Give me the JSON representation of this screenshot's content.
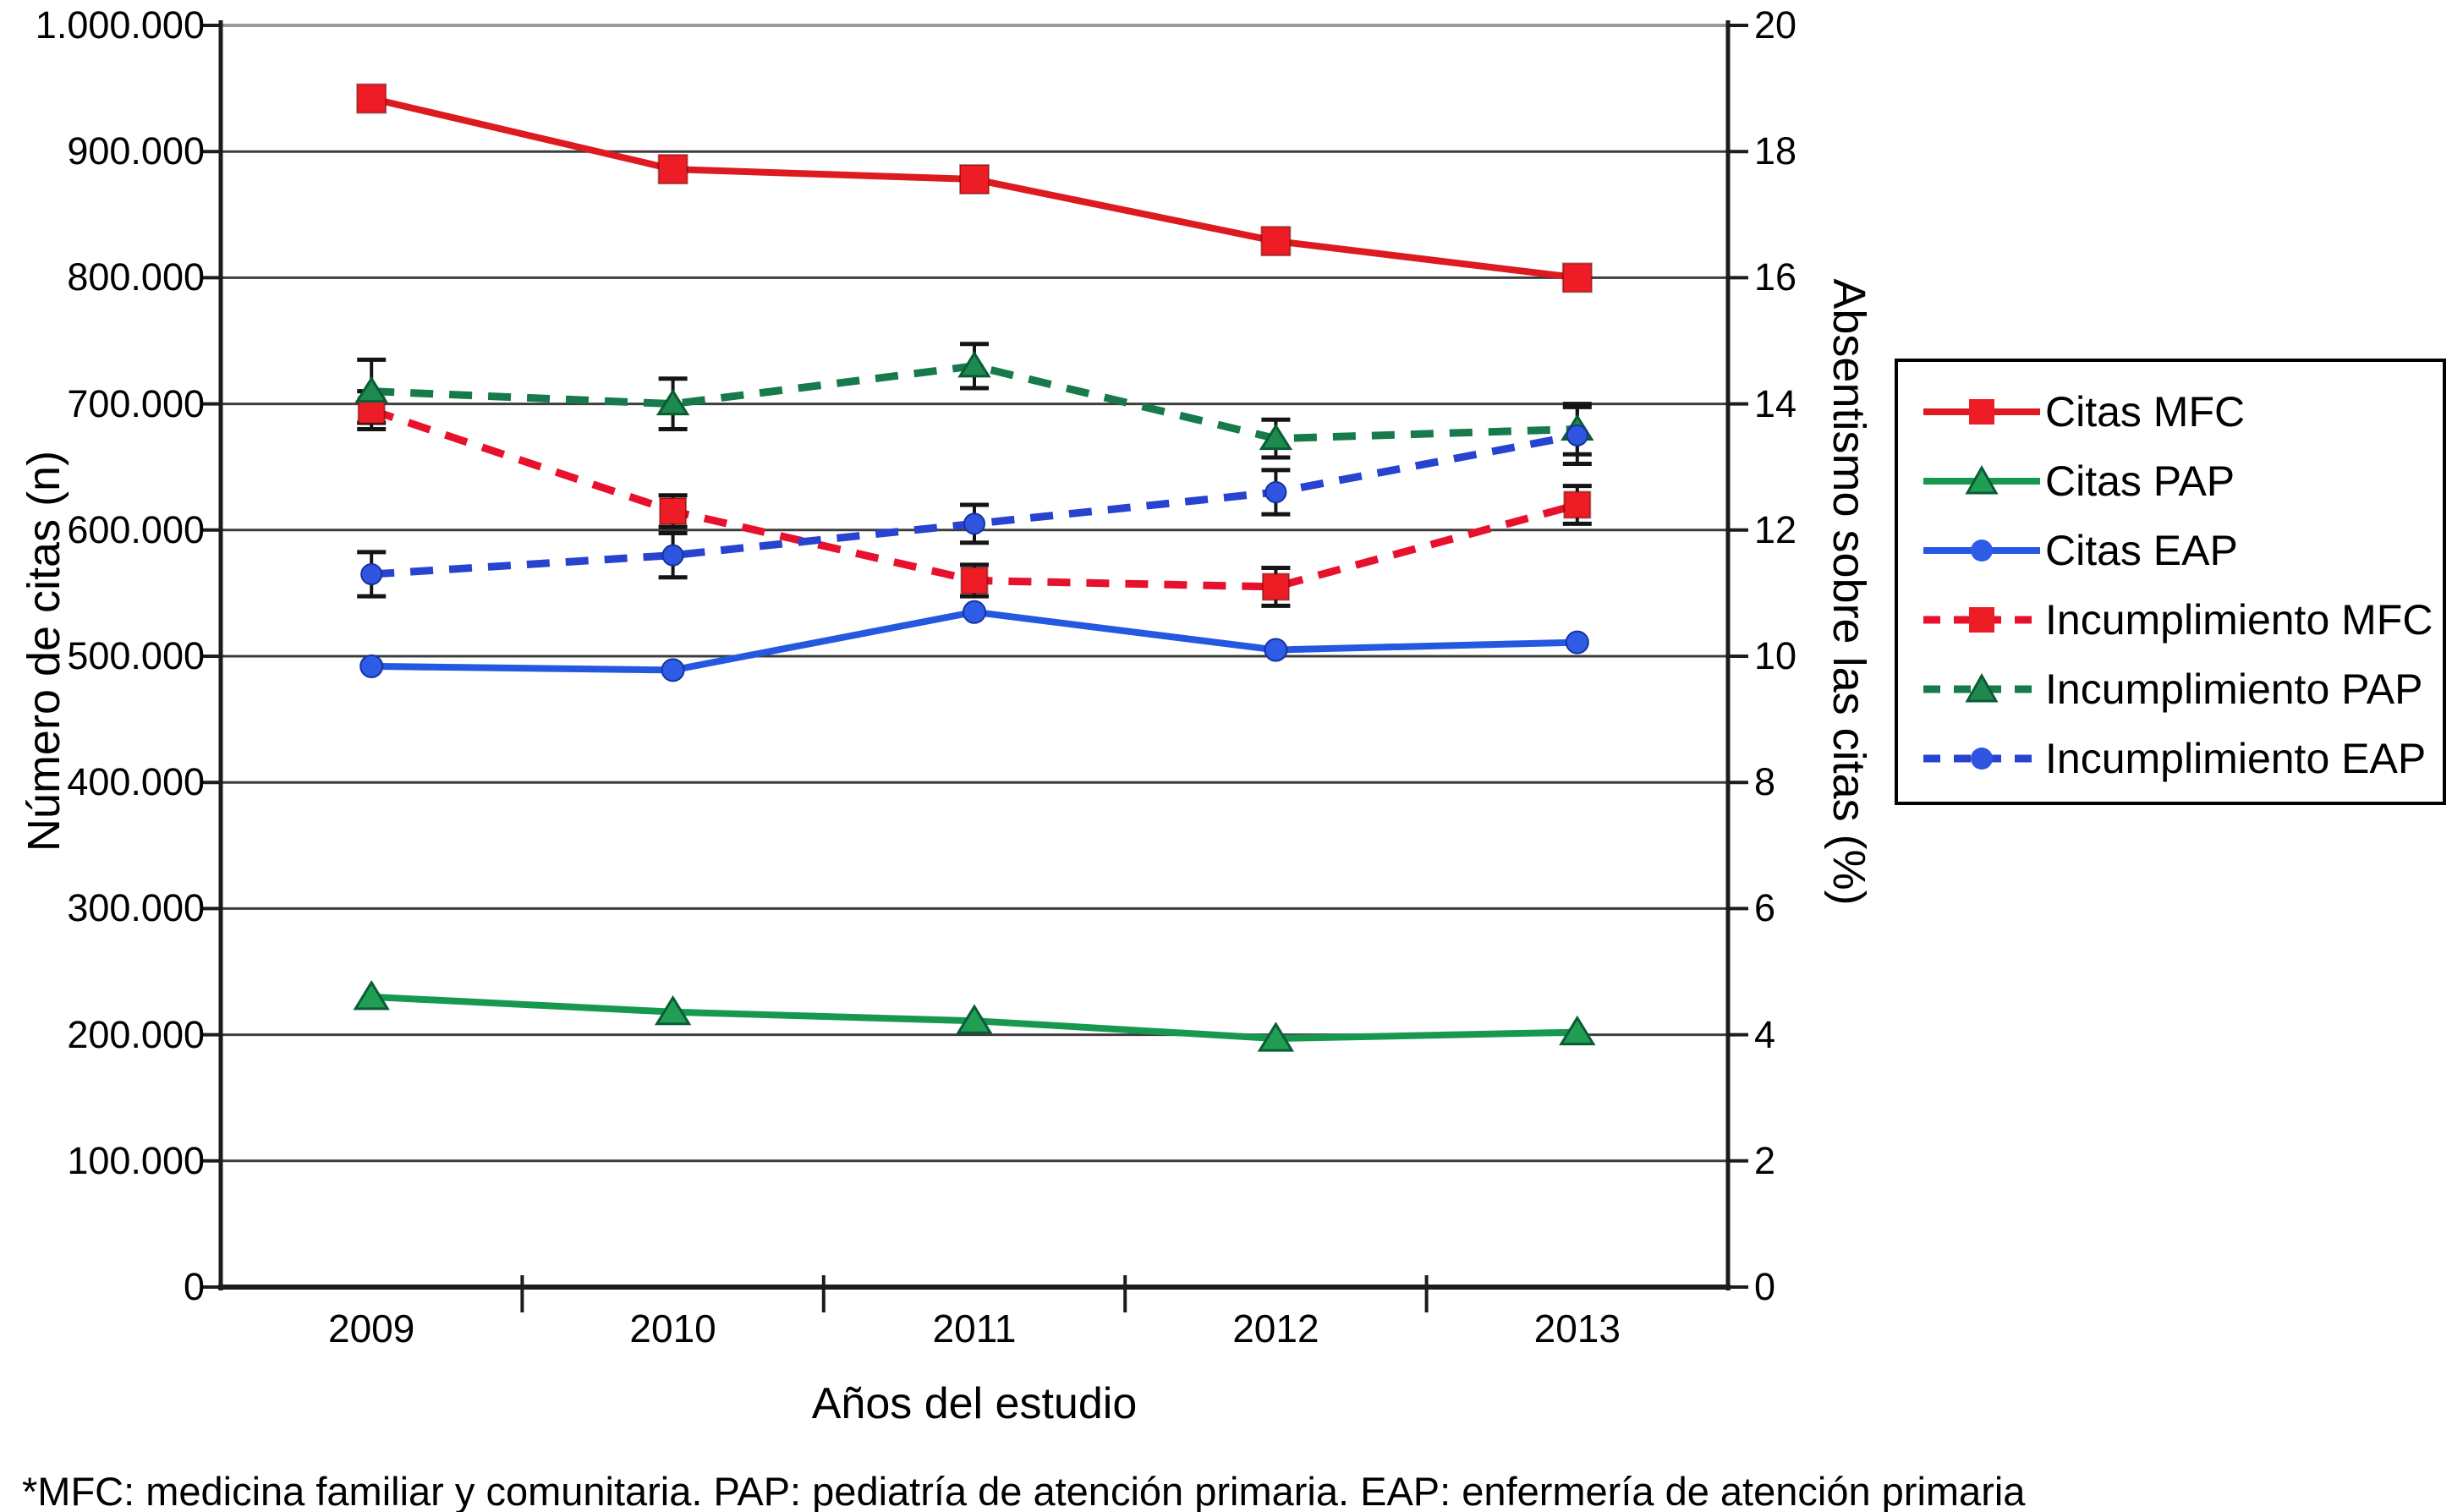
{
  "figure": {
    "background": "#ffffff",
    "text_color": "#000000",
    "axis_color": "#1c1c1c",
    "gridline_color": "#3d3d3d",
    "top_gridline_color": "#9a9a9a"
  },
  "chart_data": {
    "type": "line",
    "title": "",
    "x": {
      "label": "Años del estudio",
      "categories": [
        "2009",
        "2010",
        "2011",
        "2012",
        "2013"
      ]
    },
    "y_left": {
      "label": "Número de citas (n)",
      "min": 0,
      "max": 1000000,
      "tick_step": 100000,
      "tick_labels": [
        "0",
        "100.000",
        "200.000",
        "300.000",
        "400.000",
        "500.000",
        "600.000",
        "700.000",
        "800.000",
        "900.000",
        "1.000.000"
      ],
      "grid": true
    },
    "y_right": {
      "label": "Absentismo sobre las citas (%)",
      "min": 0,
      "max": 20,
      "tick_step": 2,
      "tick_labels": [
        "0",
        "2",
        "4",
        "6",
        "8",
        "10",
        "12",
        "14",
        "16",
        "18",
        "20"
      ]
    },
    "legend_position": "right",
    "series": [
      {
        "name": "Citas MFC",
        "axis": "left",
        "line": "solid",
        "marker": "square",
        "color": "#dd1a1f",
        "marker_color": "#ee1c24",
        "values": [
          942000,
          886000,
          878000,
          829000,
          800000
        ]
      },
      {
        "name": "Citas PAP",
        "axis": "left",
        "line": "solid",
        "marker": "triangle",
        "color": "#17984f",
        "marker_color": "#1f9e54",
        "values": [
          230000,
          218000,
          211000,
          197000,
          202000
        ]
      },
      {
        "name": "Citas EAP",
        "axis": "left",
        "line": "solid",
        "marker": "circle",
        "color": "#2458e0",
        "marker_color": "#2e5ce6",
        "values": [
          492000,
          489000,
          535000,
          505000,
          511000
        ]
      },
      {
        "name": "Incumplimiento MFC",
        "axis": "right",
        "line": "dashed",
        "marker": "square",
        "color": "#e8112d",
        "marker_color": "#ee1c24",
        "values": [
          13.9,
          12.3,
          11.2,
          11.1,
          12.4
        ],
        "errors": [
          0.3,
          0.25,
          0.25,
          0.3,
          0.3
        ]
      },
      {
        "name": "Incumplimiento PAP",
        "axis": "right",
        "line": "dashed",
        "marker": "triangle",
        "color": "#177a4b",
        "marker_color": "#1f8a4f",
        "values": [
          14.2,
          14.0,
          14.6,
          13.45,
          13.6
        ],
        "errors": [
          0.5,
          0.4,
          0.35,
          0.3,
          0.4
        ]
      },
      {
        "name": "Incumplimiento EAP",
        "axis": "right",
        "line": "dashed",
        "marker": "circle",
        "color": "#2743cf",
        "marker_color": "#2f55e0",
        "values": [
          11.3,
          11.6,
          12.1,
          12.6,
          13.5
        ],
        "errors": [
          0.35,
          0.35,
          0.3,
          0.35,
          0.45
        ]
      }
    ],
    "footnote": "*MFC: medicina familiar y comunitaria. PAP: pediatría de atención primaria. EAP: enfermería de atención primaria"
  }
}
